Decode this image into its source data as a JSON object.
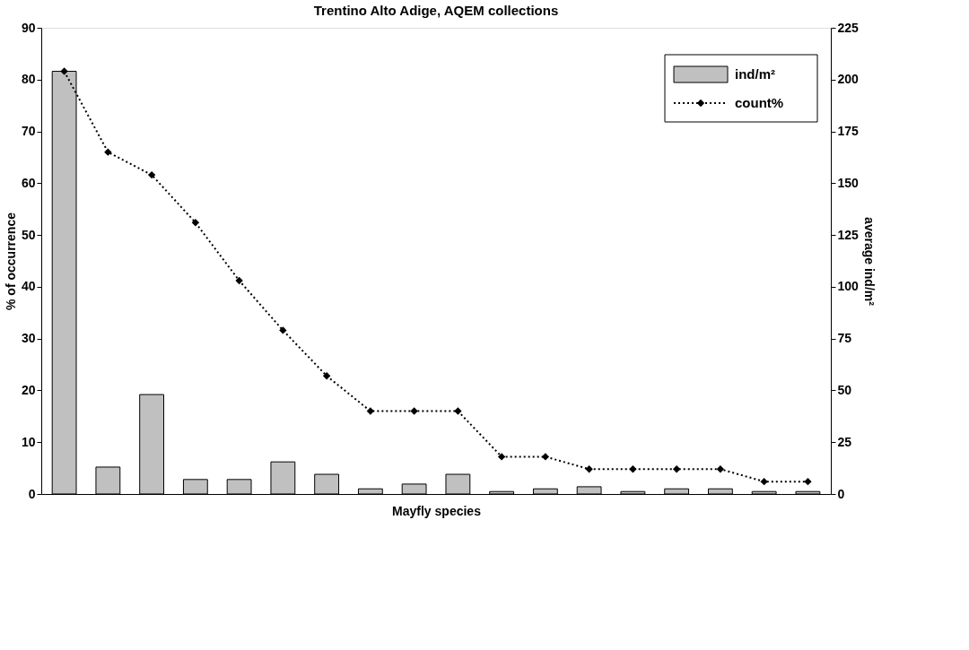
{
  "chart_data": {
    "type": "bar",
    "title": "Trentino Alto Adige, AQEM collections",
    "xlabel": "Mayfly species",
    "ylabel": "% of occurrence",
    "y2label": "average ind/m²",
    "categories": [
      null,
      null,
      null,
      null,
      null,
      null,
      null,
      null,
      null,
      null,
      null,
      null,
      null,
      null,
      null,
      null,
      null,
      null
    ],
    "series": [
      {
        "name": "ind/m²",
        "axis": "y2",
        "color": "#c0c0c0",
        "values": [
          204,
          13,
          48,
          7,
          7,
          15.5,
          9.5,
          2.5,
          4.8,
          9.5,
          1.2,
          2.5,
          3.5,
          1.2,
          2.5,
          2.5,
          1.2,
          1.2
        ]
      },
      {
        "name": "count%",
        "type": "line",
        "color": "#000000",
        "marker": "diamond",
        "line_style": "dotted",
        "values": [
          81.6,
          66,
          61.6,
          52.4,
          41.2,
          31.6,
          22.8,
          16,
          16,
          16,
          7.2,
          7.2,
          4.8,
          4.8,
          4.8,
          4.8,
          2.4,
          2.4
        ]
      }
    ],
    "ylim": [
      0,
      90
    ],
    "yticks": [
      0,
      10,
      20,
      30,
      40,
      50,
      60,
      70,
      80,
      90
    ],
    "y2lim": [
      0,
      225
    ],
    "y2ticks": [
      0,
      25,
      50,
      75,
      100,
      125,
      150,
      175,
      200,
      225
    ],
    "grid": false,
    "legend": "top right"
  }
}
